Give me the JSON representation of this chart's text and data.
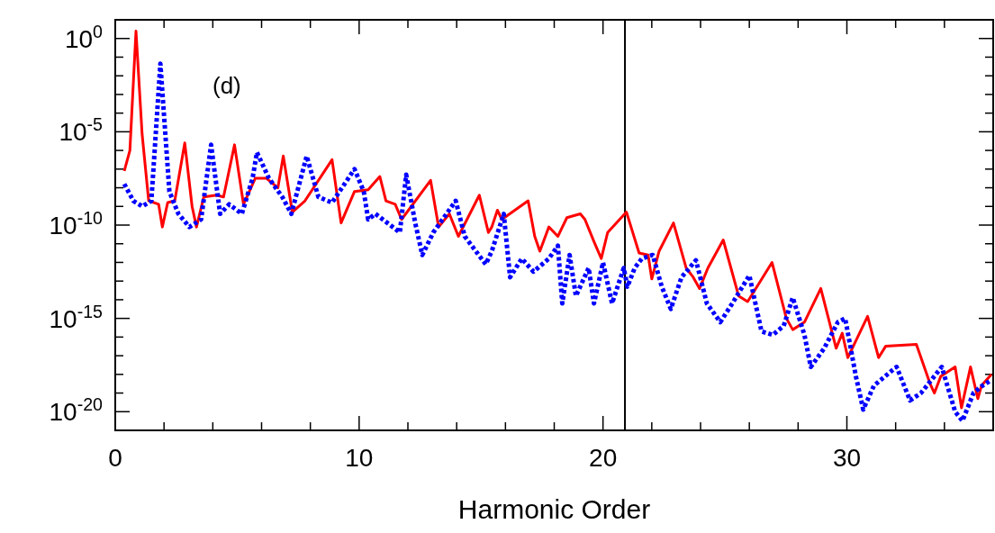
{
  "chart_data": {
    "type": "line",
    "xlabel": "Harmonic Order",
    "log": "y",
    "marker": "none",
    "xlim": [
      0,
      36
    ],
    "ylim": [
      1e-21,
      10
    ],
    "xticks": [
      0,
      {
        "value": 2,
        "label": null
      },
      {
        "value": 4,
        "label": null
      },
      {
        "value": 6,
        "label": null
      },
      {
        "value": 8,
        "label": null
      },
      10,
      {
        "value": 12,
        "label": null
      },
      {
        "value": 14,
        "label": null
      },
      {
        "value": 16,
        "label": null
      },
      {
        "value": 18,
        "label": null
      },
      20,
      {
        "value": 22,
        "label": null
      },
      {
        "value": 24,
        "label": null
      },
      {
        "value": 26,
        "label": null
      },
      {
        "value": 28,
        "label": null
      },
      30,
      {
        "value": 32,
        "label": null
      },
      {
        "value": 34,
        "label": null
      }
    ],
    "yticks": [
      {
        "value": 1e-21,
        "label": null
      },
      {
        "value": 1e-20,
        "label": "10$^{-20}$"
      },
      {
        "value": 1e-19,
        "label": null
      },
      {
        "value": 1e-18,
        "label": null
      },
      {
        "value": 1e-17,
        "label": null
      },
      {
        "value": 1e-16,
        "label": null
      },
      {
        "value": 1e-15,
        "label": "10$^{-15}$"
      },
      {
        "value": 1e-14,
        "label": null
      },
      {
        "value": 1e-13,
        "label": null
      },
      {
        "value": 1e-12,
        "label": null
      },
      {
        "value": 1e-11,
        "label": null
      },
      {
        "value": 1e-10,
        "label": "10$^{-10}$"
      },
      {
        "value": 1e-09,
        "label": null
      },
      {
        "value": 1e-08,
        "label": null
      },
      {
        "value": 1e-07,
        "label": null
      },
      {
        "value": 1e-06,
        "label": null
      },
      {
        "value": 1e-05,
        "label": "10$^{-5}$"
      },
      {
        "value": 0.0001,
        "label": null
      },
      {
        "value": 0.001,
        "label": null
      },
      {
        "value": 0.01,
        "label": null
      },
      {
        "value": 0.1,
        "label": null
      },
      {
        "value": 1,
        "label": "10$^{0}$"
      },
      {
        "value": 10,
        "label": null
      }
    ],
    "annotations": [
      "(d)"
    ],
    "ref_lines": [
      {
        "axis": "x",
        "value": 20.9,
        "color": "#000000"
      }
    ],
    "series": [
      {
        "color": "#ff0000",
        "line_style": "solid",
        "x": [
          0.37,
          0.6,
          0.85,
          1.1,
          1.37,
          1.78,
          1.93,
          2.15,
          2.44,
          2.85,
          3.15,
          3.33,
          3.63,
          4.15,
          4.44,
          4.89,
          5.26,
          5.74,
          6.2,
          6.67,
          6.89,
          7.26,
          7.78,
          8.89,
          9.26,
          9.81,
          10.37,
          10.85,
          11.1,
          11.48,
          11.74,
          12.93,
          13.26,
          13.7,
          14.07,
          14.93,
          15.3,
          15.44,
          15.67,
          15.85,
          16.93,
          17.2,
          17.41,
          17.78,
          18.15,
          18.52,
          19.07,
          19.26,
          19.63,
          19.93,
          20.19,
          20.96,
          21.48,
          21.85,
          22.0,
          22.3,
          22.89,
          23.41,
          23.7,
          23.96,
          24.3,
          24.93,
          25.56,
          25.93,
          26.22,
          26.93,
          27.52,
          27.78,
          28.26,
          28.93,
          29.56,
          29.81,
          30.04,
          30.85,
          31.3,
          31.59,
          32.85,
          33.41,
          33.59,
          33.85,
          34.44,
          34.7,
          35.07,
          35.37,
          35.52,
          35.93
        ],
        "values": [
          7.9e-08,
          1e-06,
          2.5,
          7.9e-06,
          2e-09,
          1.3e-09,
          7.9e-11,
          1.6e-09,
          2e-09,
          2.5e-06,
          1e-09,
          7.9e-11,
          3.2e-09,
          4e-09,
          3.2e-09,
          2e-06,
          1.3e-09,
          3.2e-08,
          3.2e-08,
          1e-08,
          5e-07,
          5e-10,
          2e-09,
          3.2e-07,
          1.3e-10,
          6.3e-09,
          7.9e-09,
          4e-08,
          2e-09,
          1.3e-09,
          2e-10,
          2.5e-08,
          7.9e-11,
          4e-10,
          2.5e-11,
          4e-09,
          4e-11,
          7.9e-11,
          6.3e-10,
          2e-10,
          2e-09,
          2.5e-11,
          4e-12,
          7.9e-11,
          2.5e-11,
          2.5e-10,
          4e-10,
          2e-10,
          1.3e-11,
          1.6e-12,
          4e-11,
          5e-10,
          3.2e-12,
          2.5e-12,
          1.3e-13,
          4e-12,
          1.3e-10,
          5e-13,
          1.6e-13,
          4e-14,
          5e-13,
          1.6e-11,
          1.6e-14,
          7.9e-15,
          3.2e-14,
          1e-12,
          1e-15,
          2.5e-16,
          6.3e-16,
          4e-14,
          2.5e-17,
          1.6e-16,
          7.9e-18,
          1.3e-15,
          7.9e-18,
          3.2e-17,
          4e-17,
          3.2e-19,
          1e-19,
          7.9e-19,
          2.5e-18,
          1.6e-20,
          2.5e-18,
          5e-20,
          2.5e-19,
          1e-18
        ]
      },
      {
        "color": "#0000ff",
        "line_style": "dotted",
        "x": [
          0.37,
          0.74,
          1.11,
          1.48,
          1.85,
          2.22,
          2.59,
          3.04,
          3.52,
          3.93,
          4.3,
          4.67,
          5.19,
          5.63,
          5.81,
          6.3,
          6.85,
          7.22,
          7.85,
          8.33,
          8.89,
          9.81,
          10.19,
          10.37,
          10.67,
          11.67,
          11.93,
          12.3,
          12.59,
          13.04,
          13.96,
          14.33,
          15.19,
          15.44,
          15.93,
          16.19,
          16.67,
          17.15,
          17.78,
          18.15,
          18.33,
          18.63,
          18.89,
          19.41,
          19.63,
          20.0,
          20.37,
          20.85,
          21.0,
          21.3,
          21.59,
          22.04,
          22.41,
          22.78,
          23.22,
          23.81,
          24.26,
          24.81,
          25.3,
          26.0,
          26.5,
          26.96,
          27.41,
          27.78,
          28.26,
          28.52,
          29.07,
          29.63,
          29.93,
          30.37,
          30.67,
          31.11,
          31.85,
          32.04,
          32.59,
          33.04,
          33.89,
          34.44,
          34.74,
          35.19,
          35.56,
          35.93
        ],
        "values": [
          1.6e-08,
          2e-09,
          1e-09,
          2e-09,
          0.045,
          6.3e-09,
          4e-10,
          7.9e-11,
          2e-10,
          2e-06,
          4e-10,
          1.3e-09,
          4e-10,
          3.2e-08,
          7.9e-07,
          3.2e-08,
          3.2e-09,
          4e-10,
          5e-07,
          3.2e-09,
          1.6e-09,
          1e-07,
          6.3e-09,
          2e-10,
          4e-10,
          4e-11,
          5e-08,
          1.3e-10,
          2.5e-12,
          4e-11,
          2e-09,
          2.5e-11,
          7.9e-13,
          4e-12,
          4e-10,
          1.6e-13,
          1.6e-12,
          3.2e-13,
          1.6e-12,
          7.9e-12,
          6.3e-15,
          2.5e-12,
          1.6e-14,
          5e-13,
          6.3e-15,
          1e-12,
          6.3e-15,
          5e-13,
          5e-14,
          5e-13,
          1.6e-12,
          2.5e-12,
          5e-14,
          3.2e-15,
          1.6e-13,
          1.3e-12,
          6.3e-15,
          6.3e-16,
          6.3e-15,
          2e-13,
          2e-16,
          1.3e-16,
          4e-16,
          1.3e-14,
          1.3e-16,
          2.5e-18,
          2.5e-17,
          6.3e-16,
          1e-15,
          7.9e-19,
          1.3e-20,
          2.5e-19,
          1.6e-18,
          2.5e-18,
          4e-20,
          1e-19,
          2.5e-18,
          1e-20,
          3.2e-21,
          1e-19,
          2.5e-19,
          5e-19
        ]
      }
    ]
  }
}
